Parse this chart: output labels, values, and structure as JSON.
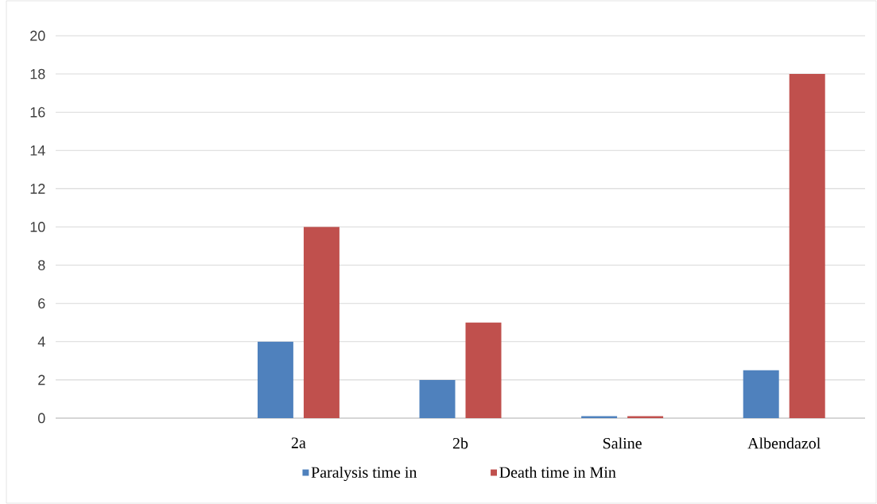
{
  "chart_data": {
    "type": "bar",
    "categories": [
      null,
      "2a",
      "2b",
      "Saline",
      "Albendazol"
    ],
    "series": [
      {
        "name": "Paralysis time in",
        "color": "#4f81bd",
        "values": [
          null,
          4,
          2,
          0.1,
          2.5
        ]
      },
      {
        "name": "Death time in Min",
        "color": "#c0504d",
        "values": [
          null,
          10,
          5,
          0.1,
          18
        ]
      }
    ],
    "ylim": [
      0,
      20
    ],
    "yticks": [
      0,
      2,
      4,
      6,
      8,
      10,
      12,
      14,
      16,
      18,
      20
    ],
    "grid": "y",
    "legend": "bottom"
  }
}
